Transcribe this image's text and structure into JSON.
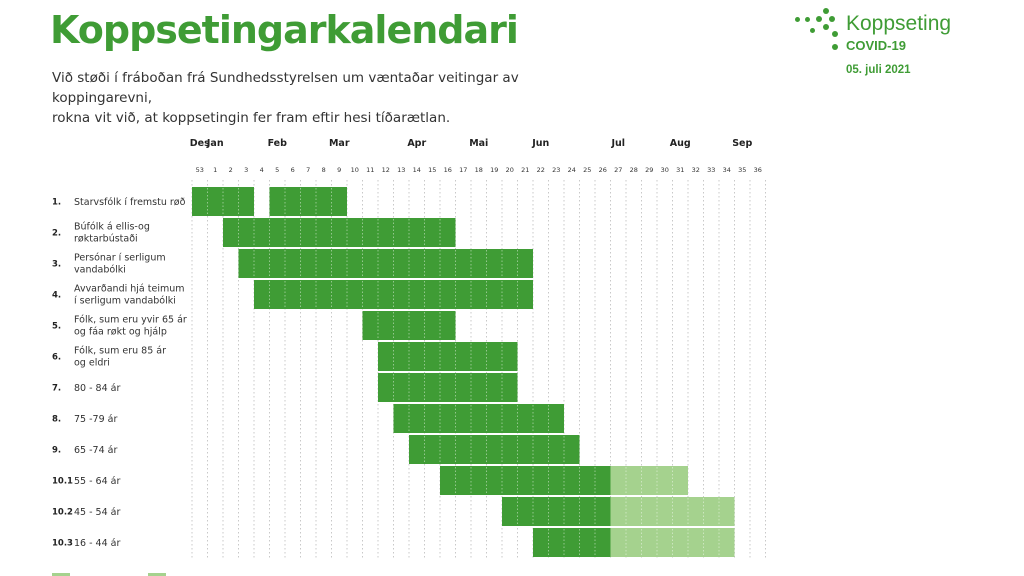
{
  "header": {
    "title": "Koppsetingarkalendari",
    "subtitle_line1": "Við støði í fráboðan frá Sundhedsstyrelsen um væntaðar veitingar av koppingarevni,",
    "subtitle_line2": "rokna vit við, at koppsetingin fer fram eftir hesi tíðarætlan."
  },
  "logo": {
    "brand": "Koppseting",
    "sub": "COVID-19"
  },
  "date": "05. juli 2021",
  "colors": {
    "accent": "#3f9c35",
    "bar": "#3f9c35",
    "bar_light": "#a5d28e",
    "grid": "#c8c8c8"
  },
  "chart_data": {
    "type": "gantt",
    "months": [
      {
        "label": "Des",
        "week": 53
      },
      {
        "label": "Jan",
        "week": 1
      },
      {
        "label": "Feb",
        "week": 5
      },
      {
        "label": "Mar",
        "week": 9
      },
      {
        "label": "Apr",
        "week": 14
      },
      {
        "label": "Mai",
        "week": 18
      },
      {
        "label": "Jun",
        "week": 22
      },
      {
        "label": "Jul",
        "week": 27
      },
      {
        "label": "Aug",
        "week": 31
      },
      {
        "label": "Sep",
        "week": 35
      }
    ],
    "weeks": [
      "53",
      "1",
      "2",
      "3",
      "4",
      "5",
      "6",
      "7",
      "8",
      "9",
      "10",
      "11",
      "12",
      "13",
      "14",
      "15",
      "16",
      "17",
      "18",
      "19",
      "20",
      "21",
      "22",
      "23",
      "24",
      "25",
      "26",
      "27",
      "28",
      "29",
      "30",
      "31",
      "32",
      "33",
      "34",
      "35",
      "36"
    ],
    "rows": [
      {
        "num": "1.",
        "label": [
          "Starvsfólk í fremstu røð"
        ],
        "segments": [
          {
            "start": "53",
            "end": "3",
            "shade": "dark"
          },
          {
            "start": "5",
            "end": "9",
            "shade": "dark"
          }
        ]
      },
      {
        "num": "2.",
        "label": [
          "Búfólk á ellis-og",
          "røktarbústaði"
        ],
        "segments": [
          {
            "start": "2",
            "end": "16",
            "shade": "dark"
          }
        ]
      },
      {
        "num": "3.",
        "label": [
          "Persónar í serligum",
          "vandabólki"
        ],
        "segments": [
          {
            "start": "3",
            "end": "21",
            "shade": "dark"
          }
        ]
      },
      {
        "num": "4.",
        "label": [
          "Avvarðandi hjá teimum",
          "í serligum vandabólki"
        ],
        "segments": [
          {
            "start": "4",
            "end": "21",
            "shade": "dark"
          }
        ]
      },
      {
        "num": "5.",
        "label": [
          "Fólk, sum eru yvir 65 ár",
          "og fáa røkt og hjálp"
        ],
        "segments": [
          {
            "start": "11",
            "end": "16",
            "shade": "dark"
          }
        ]
      },
      {
        "num": "6.",
        "label": [
          "Fólk, sum eru 85 ár",
          "og eldri"
        ],
        "segments": [
          {
            "start": "12",
            "end": "20",
            "shade": "dark"
          }
        ]
      },
      {
        "num": "7.",
        "label": [
          "80 - 84 ár"
        ],
        "segments": [
          {
            "start": "12",
            "end": "20",
            "shade": "dark"
          }
        ]
      },
      {
        "num": "8.",
        "label": [
          "75 -79 ár"
        ],
        "segments": [
          {
            "start": "13",
            "end": "23",
            "shade": "dark"
          }
        ]
      },
      {
        "num": "9.",
        "label": [
          "65 -74 ár"
        ],
        "segments": [
          {
            "start": "14",
            "end": "24",
            "shade": "dark"
          }
        ]
      },
      {
        "num": "10.1",
        "label": [
          "55 - 64 ár"
        ],
        "segments": [
          {
            "start": "16",
            "end": "26",
            "shade": "dark"
          },
          {
            "start": "27",
            "end": "31",
            "shade": "light"
          }
        ]
      },
      {
        "num": "10.2",
        "label": [
          "45 - 54 ár"
        ],
        "segments": [
          {
            "start": "20",
            "end": "26",
            "shade": "dark"
          },
          {
            "start": "27",
            "end": "34",
            "shade": "light"
          }
        ]
      },
      {
        "num": "10.3",
        "label": [
          "16 - 44 ár"
        ],
        "segments": [
          {
            "start": "22",
            "end": "26",
            "shade": "dark"
          },
          {
            "start": "27",
            "end": "34",
            "shade": "light"
          }
        ]
      }
    ]
  }
}
